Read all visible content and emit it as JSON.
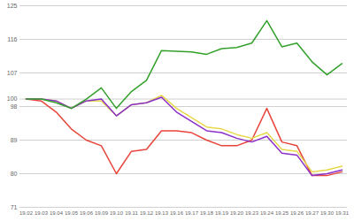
{
  "chart_data": {
    "type": "line",
    "categories": [
      "19.02",
      "19.03",
      "19.04",
      "19.05",
      "19.06",
      "19.09",
      "19.10",
      "19.11",
      "19.12",
      "19.13",
      "19.16",
      "19.17",
      "19.18",
      "19.19",
      "19.20",
      "19.23",
      "19.24",
      "19.25",
      "19.26",
      "19.27",
      "19.30",
      "19.31"
    ],
    "series": [
      {
        "color": "#e8443a",
        "values": [
          100,
          99.5,
          96.5,
          92,
          89,
          87.5,
          80,
          86,
          86.5,
          91.5,
          91.5,
          91,
          89,
          87.5,
          87.5,
          89,
          97.5,
          88.5,
          87.5,
          79.5,
          79.5,
          80.5
        ]
      },
      {
        "color": "#e6d84a",
        "values": [
          100,
          100,
          99.5,
          97.5,
          99.5,
          99.5,
          95.5,
          98.5,
          99,
          101,
          97.5,
          95,
          92.5,
          92,
          90.5,
          89.5,
          91,
          86.5,
          86,
          80.5,
          81,
          82
        ]
      },
      {
        "color": "#8b2fc9",
        "values": [
          100,
          100,
          99.5,
          97.5,
          99.5,
          100,
          95.5,
          98.5,
          99,
          100.5,
          96.5,
          94,
          91.5,
          91,
          89.5,
          88.5,
          90,
          85.5,
          85,
          79.5,
          80,
          81
        ]
      },
      {
        "color": "#33a02c",
        "values": [
          100,
          100,
          99,
          97.5,
          100,
          103,
          97.5,
          102,
          105,
          113,
          112.8,
          112.6,
          112,
          113.5,
          113.8,
          115,
          121,
          114,
          115,
          110,
          106.5,
          109.5
        ]
      }
    ],
    "ylim": [
      71,
      125
    ],
    "yticks": [
      71,
      80,
      89,
      98,
      100,
      107,
      116,
      125
    ],
    "grid": true
  }
}
